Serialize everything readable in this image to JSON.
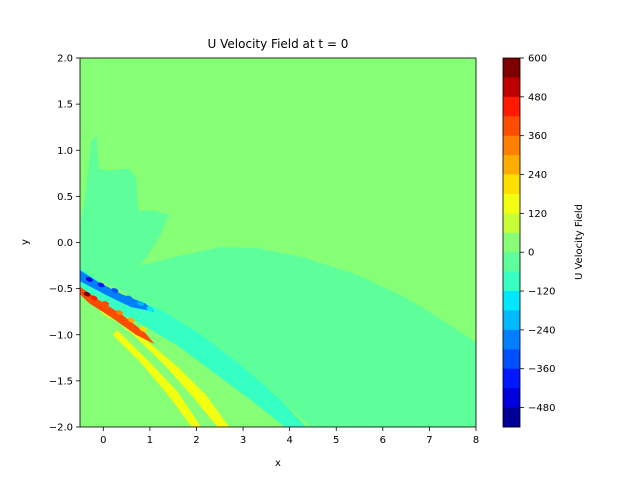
{
  "chart_data": {
    "type": "heatmap",
    "subtype": "filled-contour",
    "title": "U Velocity Field at t = 0",
    "xlabel": "x",
    "ylabel": "y",
    "xlim": [
      -0.5,
      8
    ],
    "ylim": [
      -2,
      2
    ],
    "xticks": [
      "0",
      "1",
      "2",
      "3",
      "4",
      "5",
      "6",
      "7",
      "8"
    ],
    "yticks": [
      "2.0",
      "1.5",
      "1.0",
      "0.5",
      "0.0",
      "−0.5",
      "−1.0",
      "−1.5",
      "−2.0"
    ],
    "colormap": "jet",
    "background_level_color": "#86fe76",
    "colorbar": {
      "label": "U Velocity Field",
      "range": [
        -540,
        600
      ],
      "ticks": [
        "600",
        "480",
        "360",
        "240",
        "120",
        "0",
        "−120",
        "−240",
        "−360",
        "−480"
      ],
      "levels": [
        {
          "from": 540,
          "to": 600,
          "color": "#7f0000"
        },
        {
          "from": 480,
          "to": 540,
          "color": "#c00000"
        },
        {
          "from": 420,
          "to": 480,
          "color": "#ff1a00"
        },
        {
          "from": 360,
          "to": 420,
          "color": "#ff4c00"
        },
        {
          "from": 300,
          "to": 360,
          "color": "#ff7f00"
        },
        {
          "from": 240,
          "to": 300,
          "color": "#ffac00"
        },
        {
          "from": 180,
          "to": 240,
          "color": "#ffdf00"
        },
        {
          "from": 120,
          "to": 180,
          "color": "#f3ff10"
        },
        {
          "from": 60,
          "to": 120,
          "color": "#c6ff33"
        },
        {
          "from": 0,
          "to": 60,
          "color": "#86fe76"
        },
        {
          "from": -60,
          "to": 0,
          "color": "#5efe9a"
        },
        {
          "from": -120,
          "to": -60,
          "color": "#36ffc3"
        },
        {
          "from": -180,
          "to": -120,
          "color": "#00e8ff"
        },
        {
          "from": -240,
          "to": -180,
          "color": "#00b8ff"
        },
        {
          "from": -300,
          "to": -240,
          "color": "#0080ff"
        },
        {
          "from": -360,
          "to": -300,
          "color": "#0050ff"
        },
        {
          "from": -420,
          "to": -360,
          "color": "#0018ff"
        },
        {
          "from": -480,
          "to": -420,
          "color": "#0000de"
        },
        {
          "from": -540,
          "to": -480,
          "color": "#000096"
        }
      ]
    },
    "regions": [
      {
        "name": "negative-wake-band",
        "level": -30,
        "points": [
          [
            -0.5,
            0.2
          ],
          [
            -0.4,
            0.45
          ],
          [
            -0.25,
            1.1
          ],
          [
            -0.15,
            1.15
          ],
          [
            -0.1,
            0.8
          ],
          [
            0.1,
            0.78
          ],
          [
            0.55,
            0.8
          ],
          [
            0.7,
            0.7
          ],
          [
            0.75,
            0.35
          ],
          [
            1.1,
            0.35
          ],
          [
            1.4,
            0.3
          ],
          [
            1.2,
            0.05
          ],
          [
            0.8,
            -0.25
          ],
          [
            1.6,
            -0.15
          ],
          [
            2.5,
            -0.05
          ],
          [
            3.3,
            -0.06
          ],
          [
            4.3,
            -0.16
          ],
          [
            5.5,
            -0.36
          ],
          [
            6.5,
            -0.6
          ],
          [
            7.3,
            -0.85
          ],
          [
            8,
            -1.08
          ],
          [
            8,
            -2
          ],
          [
            4.45,
            -2
          ],
          [
            3.6,
            -1.6
          ],
          [
            2.4,
            -1.2
          ],
          [
            1.2,
            -0.8
          ],
          [
            0.5,
            -0.55
          ],
          [
            -0.5,
            -0.3
          ]
        ]
      },
      {
        "name": "cyan-shear-layer",
        "level": -90,
        "points": [
          [
            -0.5,
            -0.28
          ],
          [
            0.3,
            -0.55
          ],
          [
            1.2,
            -0.72
          ],
          [
            2.1,
            -1.0
          ],
          [
            3.0,
            -1.35
          ],
          [
            3.8,
            -1.7
          ],
          [
            4.35,
            -2
          ],
          [
            3.9,
            -2
          ],
          [
            3.2,
            -1.72
          ],
          [
            2.4,
            -1.42
          ],
          [
            1.6,
            -1.12
          ],
          [
            0.8,
            -0.88
          ],
          [
            0.0,
            -0.68
          ],
          [
            -0.5,
            -0.55
          ]
        ]
      },
      {
        "name": "upper-yellow-streak",
        "level": 150,
        "points": [
          [
            0.0,
            -0.78
          ],
          [
            0.9,
            -1.05
          ],
          [
            1.6,
            -1.35
          ],
          [
            2.2,
            -1.65
          ],
          [
            2.7,
            -2
          ],
          [
            2.45,
            -2
          ],
          [
            1.9,
            -1.66
          ],
          [
            1.3,
            -1.32
          ],
          [
            0.6,
            -0.98
          ],
          [
            -0.1,
            -0.72
          ]
        ]
      },
      {
        "name": "lower-yellow-streak",
        "level": 120,
        "points": [
          [
            0.3,
            -0.95
          ],
          [
            1.0,
            -1.3
          ],
          [
            1.6,
            -1.62
          ],
          [
            2.1,
            -2
          ],
          [
            1.9,
            -2
          ],
          [
            1.4,
            -1.66
          ],
          [
            0.8,
            -1.3
          ],
          [
            0.2,
            -1.0
          ]
        ]
      },
      {
        "name": "blue-vortex-core",
        "level": -270,
        "points": [
          [
            -0.5,
            -0.3
          ],
          [
            -0.1,
            -0.43
          ],
          [
            0.4,
            -0.56
          ],
          [
            0.9,
            -0.66
          ],
          [
            1.1,
            -0.75
          ],
          [
            0.6,
            -0.7
          ],
          [
            0.1,
            -0.58
          ],
          [
            -0.5,
            -0.42
          ]
        ]
      },
      {
        "name": "red-vortex-core",
        "level": 390,
        "points": [
          [
            -0.5,
            -0.48
          ],
          [
            -0.1,
            -0.62
          ],
          [
            0.4,
            -0.78
          ],
          [
            0.9,
            -0.98
          ],
          [
            1.1,
            -1.1
          ],
          [
            0.7,
            -1.0
          ],
          [
            0.2,
            -0.82
          ],
          [
            -0.3,
            -0.66
          ],
          [
            -0.5,
            -0.56
          ]
        ]
      }
    ],
    "vortex_spots": [
      {
        "x": -0.35,
        "y": -0.56,
        "level": 540
      },
      {
        "x": -0.2,
        "y": -0.6,
        "level": 420
      },
      {
        "x": 0.05,
        "y": -0.66,
        "level": 360
      },
      {
        "x": 0.35,
        "y": -0.76,
        "level": 300
      },
      {
        "x": 0.6,
        "y": -0.84,
        "level": 240
      },
      {
        "x": 0.85,
        "y": -0.94,
        "level": 180
      },
      {
        "x": -0.3,
        "y": -0.4,
        "level": -480
      },
      {
        "x": -0.05,
        "y": -0.46,
        "level": -420
      },
      {
        "x": 0.25,
        "y": -0.52,
        "level": -360
      },
      {
        "x": 0.55,
        "y": -0.6,
        "level": -300
      },
      {
        "x": 0.8,
        "y": -0.66,
        "level": -240
      },
      {
        "x": 1.0,
        "y": -0.72,
        "level": -180
      }
    ]
  }
}
